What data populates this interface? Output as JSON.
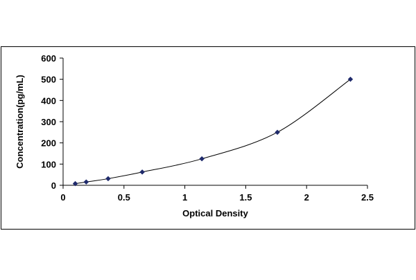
{
  "chart_data": {
    "type": "scatter",
    "title": "",
    "xlabel": "Optical Density",
    "ylabel": "Concentration(pg/mL)",
    "xlim": [
      0,
      2.5
    ],
    "ylim": [
      0,
      600
    ],
    "x_ticks": [
      0,
      0.5,
      1,
      1.5,
      2,
      2.5
    ],
    "x_tick_labels": [
      "0",
      "0.5",
      "1",
      "1.5",
      "2",
      "2.5"
    ],
    "y_ticks": [
      0,
      100,
      200,
      300,
      400,
      500,
      600
    ],
    "y_tick_labels": [
      "0",
      "100",
      "200",
      "300",
      "400",
      "500",
      "600"
    ],
    "grid": false,
    "legend": "none",
    "series": [
      {
        "x": [
          0.1,
          0.19,
          0.37,
          0.65,
          1.14,
          1.76,
          2.36
        ],
        "y": [
          7.8,
          15.6,
          31.2,
          62.5,
          125,
          250,
          500
        ],
        "marker": "diamond",
        "marker_color": "#1f2a6b",
        "line": "smooth",
        "line_color": "#000000"
      }
    ],
    "frame_color": "#000000"
  }
}
